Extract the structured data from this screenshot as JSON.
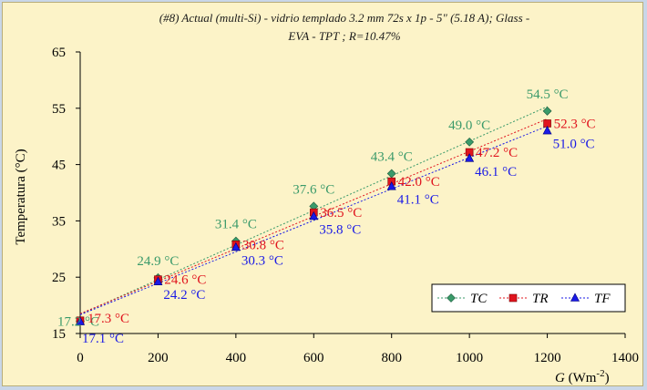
{
  "chart_data": {
    "type": "line",
    "title_lines": [
      "(#8) Actual (multi-Si) - vidrio templado 3.2 mm 72s x 1p - 5\" (5.18 A);  Glass -",
      "EVA - TPT ; R=10.47%"
    ],
    "ylabel": "Temperatura (°C)",
    "xlabel": "G (Wm-2)",
    "xlim": [
      0,
      1400
    ],
    "ylim": [
      15,
      65
    ],
    "x_ticks": [
      0,
      200,
      400,
      600,
      800,
      1000,
      1200,
      1400
    ],
    "y_ticks": [
      15,
      25,
      35,
      45,
      55,
      65
    ],
    "legend_position": "bottom-right",
    "grid": false,
    "x": [
      0,
      200,
      400,
      600,
      800,
      1000,
      1200
    ],
    "series": [
      {
        "name": "TC",
        "color": "#3a9a6a",
        "marker": "diamond",
        "values": [
          17.2,
          24.9,
          31.4,
          37.6,
          43.4,
          49.0,
          54.5
        ],
        "labels": [
          "17.2 °C",
          "24.9 °C",
          "31.4 °C",
          "37.6 °C",
          "43.4 °C",
          "49.0 °C",
          "54.5 °C"
        ]
      },
      {
        "name": "TR",
        "color": "#e0141e",
        "marker": "square",
        "values": [
          17.3,
          24.6,
          30.8,
          36.5,
          42.0,
          47.2,
          52.3
        ],
        "labels": [
          "17.3 °C",
          "24.6 °C",
          "30.8 °C",
          "36.5 °C",
          "42.0 °C",
          "47.2 °C",
          "52.3 °C"
        ]
      },
      {
        "name": "TF",
        "color": "#1a1ae6",
        "marker": "triangle",
        "values": [
          17.1,
          24.2,
          30.3,
          35.8,
          41.1,
          46.1,
          51.0
        ],
        "labels": [
          "17.1 °C",
          "24.2 °C",
          "30.3 °C",
          "35.8 °C",
          "41.1 °C",
          "46.1 °C",
          "51.0 °C"
        ]
      }
    ]
  }
}
